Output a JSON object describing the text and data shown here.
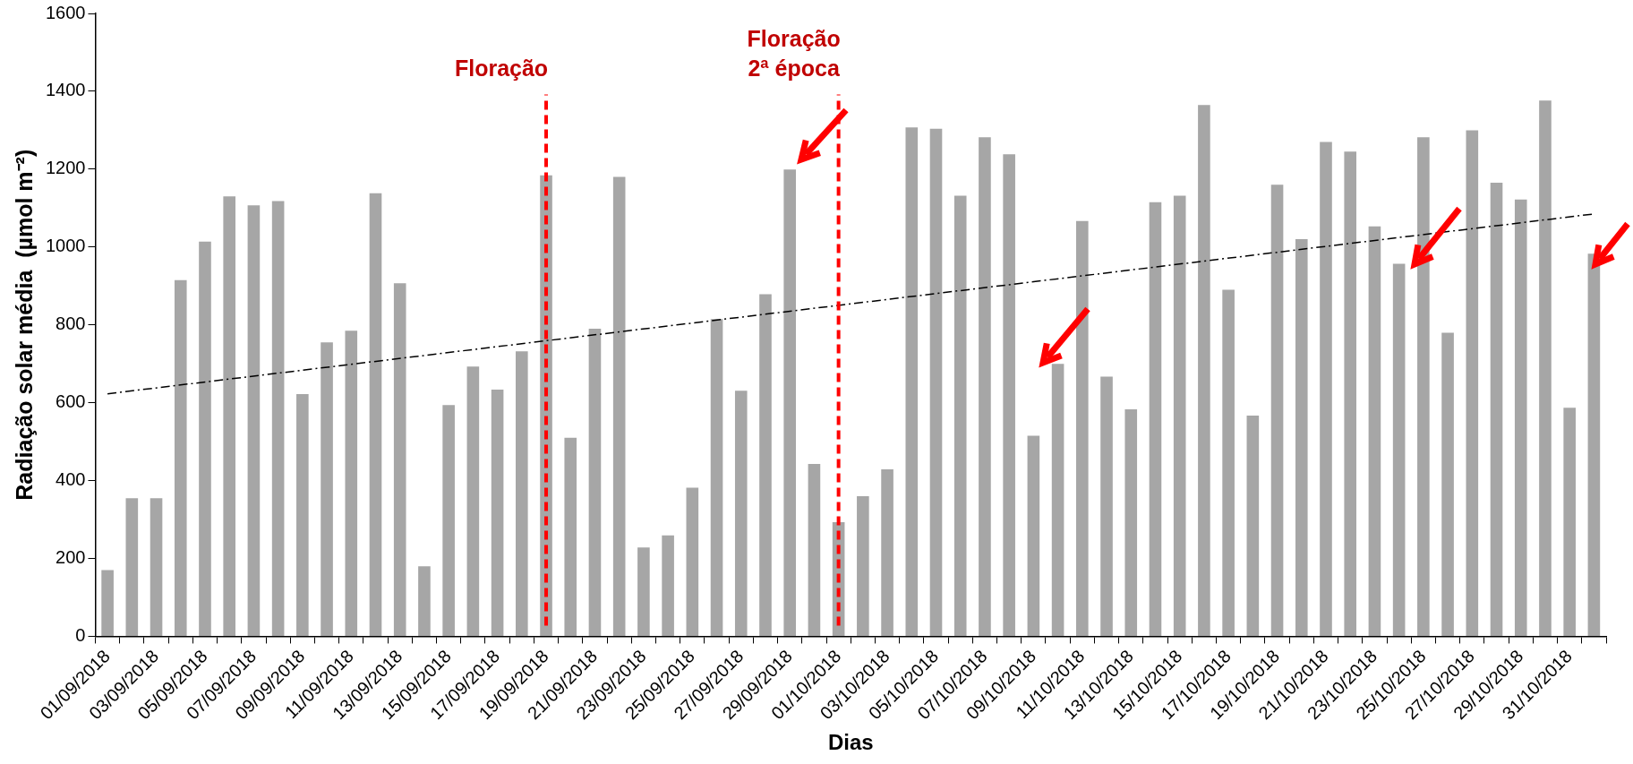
{
  "chart_data": {
    "type": "bar",
    "xlabel": "Dias",
    "ylabel": "Radiação solar média  (µmol m⁻²)",
    "categories": [
      "01/09/2018",
      null,
      "03/09/2018",
      null,
      "05/09/2018",
      null,
      "07/09/2018",
      null,
      "09/09/2018",
      null,
      "11/09/2018",
      null,
      "13/09/2018",
      null,
      "15/09/2018",
      null,
      "17/09/2018",
      null,
      "19/09/2018",
      null,
      "21/09/2018",
      null,
      "23/09/2018",
      null,
      "25/09/2018",
      null,
      "27/09/2018",
      null,
      "29/09/2018",
      null,
      "01/10/2018",
      null,
      "03/10/2018",
      null,
      "05/10/2018",
      null,
      "07/10/2018",
      null,
      "09/10/2018",
      null,
      "11/10/2018",
      null,
      "13/10/2018",
      null,
      "15/10/2018",
      null,
      "17/10/2018",
      null,
      "19/10/2018",
      null,
      "21/10/2018",
      null,
      "23/10/2018",
      null,
      "25/10/2018",
      null,
      "27/10/2018",
      null,
      "29/10/2018",
      null,
      "31/10/2018",
      null
    ],
    "series": [
      {
        "color": "#a6a6a6",
        "values": [
          170,
          355,
          355,
          915,
          1014,
          1130,
          1107,
          1118,
          622,
          755,
          785,
          1138,
          907,
          180,
          594,
          693,
          634,
          732,
          1184,
          510,
          790,
          1180,
          228,
          259,
          382,
          815,
          631,
          879,
          1199,
          443,
          293,
          360,
          429,
          1307,
          1304,
          1132,
          1282,
          1238,
          515,
          700,
          1067,
          667,
          583,
          1115,
          1132,
          1365,
          890,
          567,
          1160,
          1020,
          1270,
          1245,
          1053,
          957,
          1282,
          780,
          1300,
          1165,
          1122,
          1376,
          587,
          983
        ]
      },
      {
        "type": "line",
        "color": "#000000",
        "line_style": "dashed",
        "marker": "none",
        "values": [
          623,
          null,
          null,
          null,
          null,
          null,
          null,
          null,
          null,
          null,
          null,
          null,
          null,
          null,
          null,
          null,
          null,
          null,
          null,
          null,
          null,
          null,
          null,
          null,
          null,
          null,
          null,
          null,
          null,
          null,
          null,
          null,
          null,
          null,
          null,
          null,
          null,
          null,
          null,
          null,
          null,
          null,
          null,
          null,
          null,
          null,
          null,
          null,
          null,
          null,
          null,
          null,
          null,
          null,
          null,
          null,
          null,
          null,
          null,
          null,
          null,
          1085
        ]
      }
    ],
    "ylim": [
      0,
      1600
    ],
    "yticks": [
      0,
      200,
      400,
      600,
      800,
      1000,
      1200,
      1400,
      1600
    ],
    "ref_lines": [
      {
        "axis": "x",
        "value": "19/09/2018",
        "label": "Floração",
        "color": "#ff0000",
        "line_style": "dashed"
      },
      {
        "axis": "x",
        "value": "01/10/2018",
        "label": "Floração\n2ª época",
        "color": "#ff0000",
        "line_style": "dashed"
      }
    ],
    "grid": false,
    "legend": false
  }
}
